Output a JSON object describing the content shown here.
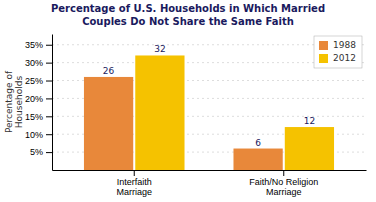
{
  "chart_data": {
    "type": "bar",
    "title": "Percentage of U.S. Households in Which Married\nCouples Do Not Share the Same Faith",
    "categories": [
      "Interfaith\nMarriage",
      "Faith/No Religion\nMarriage"
    ],
    "series": [
      {
        "name": "1988",
        "color": "#E8883A",
        "values": [
          26,
          6
        ]
      },
      {
        "name": "2012",
        "color": "#F5C200",
        "values": [
          32,
          12
        ]
      }
    ],
    "ylabel": "Percentage of\nHouseholds",
    "ylim": [
      0,
      38
    ],
    "yticks": [
      {
        "value": 5,
        "label": "5%"
      },
      {
        "value": 10,
        "label": "10%"
      },
      {
        "value": 15,
        "label": "15%"
      },
      {
        "value": 20,
        "label": "20%"
      },
      {
        "value": 25,
        "label": "25%"
      },
      {
        "value": 30,
        "label": "30%"
      },
      {
        "value": 35,
        "label": "35%"
      }
    ],
    "grid": true,
    "data_labels": true,
    "legend": "upper right"
  }
}
